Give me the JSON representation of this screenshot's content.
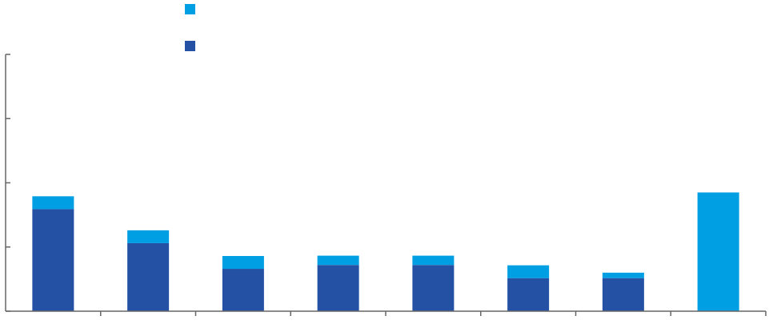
{
  "chart_data": {
    "type": "bar",
    "stacked": true,
    "title": "",
    "xlabel": "",
    "ylabel": "",
    "ylim": [
      0,
      8
    ],
    "y_ticks": [
      0,
      2,
      4,
      6,
      8
    ],
    "tick_labels_shown": false,
    "categories": [
      "",
      "",
      "",
      "",
      "",
      "",
      "",
      ""
    ],
    "legend": {
      "placement": "top-left",
      "entries": [
        {
          "color": "#009fe3"
        },
        {
          "color": "#2451a4"
        }
      ]
    },
    "series": [
      {
        "color": "#2451a4",
        "values": [
          3.18,
          2.12,
          1.32,
          1.44,
          1.44,
          1.03,
          1.03,
          0
        ]
      },
      {
        "color": "#009fe3",
        "values": [
          0.4,
          0.4,
          0.4,
          0.29,
          0.29,
          0.4,
          0.17,
          3.7
        ]
      }
    ],
    "axis_color": "#666666"
  }
}
